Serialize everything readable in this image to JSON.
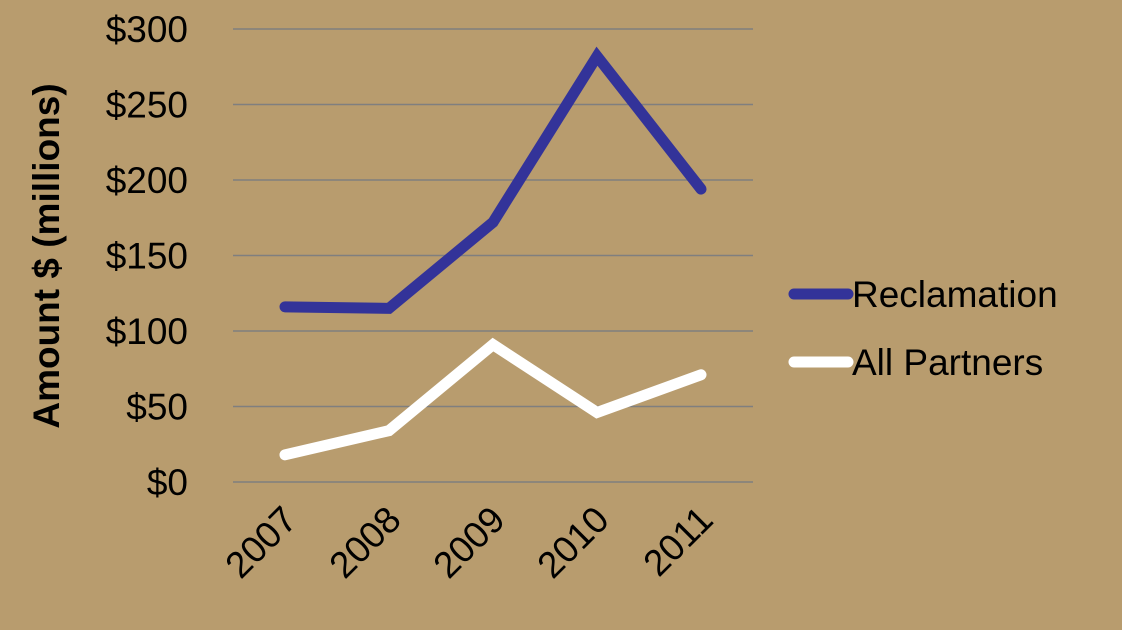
{
  "background": "#B89C6E",
  "chart_data": {
    "type": "line",
    "x": [
      "2007",
      "2008",
      "2009",
      "2010",
      "2011"
    ],
    "series": [
      {
        "name": "Reclamation",
        "color": "#333399",
        "values": [
          116,
          115,
          172,
          282,
          194
        ]
      },
      {
        "name": "All Partners",
        "color": "#FFFFFF",
        "values": [
          18,
          34,
          91,
          46,
          71
        ]
      }
    ],
    "ylabel": "Amount $ (millions)",
    "xlabel": "",
    "y_ticks": [
      "$0",
      "$50",
      "$100",
      "$150",
      "$200",
      "$250",
      "$300"
    ],
    "ylim": [
      0,
      300
    ],
    "grid": "horizontal",
    "grid_color": "#7F7F7F",
    "legend_position": "right"
  }
}
